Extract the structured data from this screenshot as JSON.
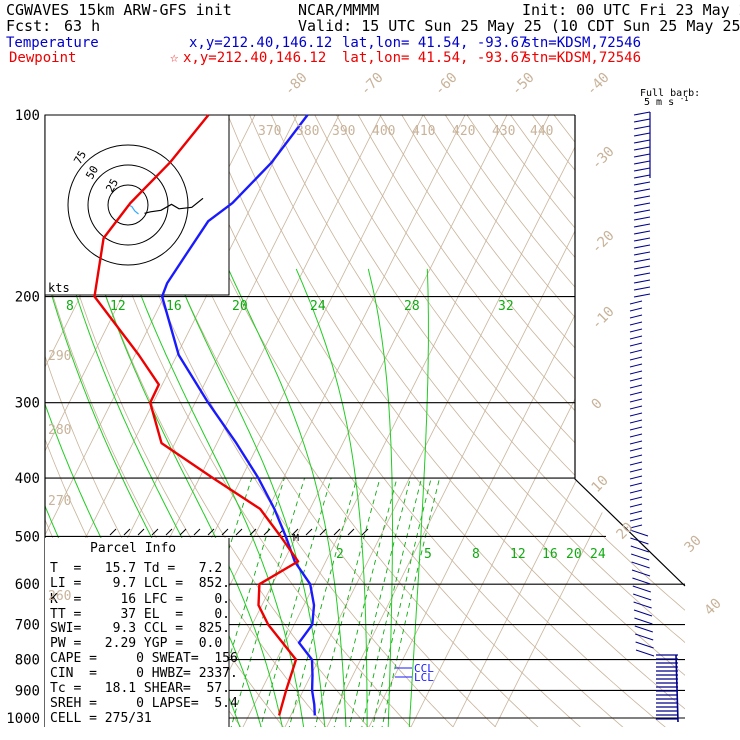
{
  "header": {
    "model": "CGWAVES 15km ARW-GFS init",
    "org": "NCAR/MMMM",
    "init": "Init: 00 UTC Fri 23 May 25",
    "fcst_label": "Fcst:",
    "fcst_value": "63 h",
    "valid": "Valid: 15 UTC Sun 25 May 25 (10 CDT Sun 25 May 25)",
    "temperature": {
      "label": "Temperature",
      "xy": "x,y=212.40,146.12",
      "latlon": "lat,lon= 41.54, -93.67",
      "stn": "stn=KDSM,72546"
    },
    "dewpoint": {
      "label": "Dewpoint",
      "star": "☆",
      "xy": "x,y=212.40,146.12",
      "latlon": "lat,lon= 41.54, -93.67",
      "stn": "stn=KDSM,72546"
    }
  },
  "barb_legend": {
    "line1": "Full barb:",
    "line2": "5 m s"
  },
  "hodograph": {
    "units": "kts",
    "ring_labels": [
      "75",
      "50",
      "25"
    ]
  },
  "parcel_info": {
    "title": "Parcel Info",
    "rows": [
      {
        "text": "T  =   15.7 Td =   7.2"
      },
      {
        "text": "LI =    9.7 LCL =  852."
      },
      {
        "text": "K  =     16 LFC =    0."
      },
      {
        "text": "TT =     37 EL  =    0."
      },
      {
        "text": "SWI=    9.3 CCL =  825."
      },
      {
        "text": "PW =   2.29 YGP =  0.0"
      },
      {
        "text": "CAPE =     0 SWEAT=  156"
      },
      {
        "text": "CIN  =     0 HWBZ= 2337."
      },
      {
        "text": "Tc =   18.1 SHEAR=  57."
      },
      {
        "text": "SREH =     0 LAPSE=  5.4"
      },
      {
        "text": "CELL = 275/31"
      }
    ]
  },
  "lcl_labels": [
    "CCL",
    "LCL"
  ],
  "colors": {
    "temperature": "#1a1aff",
    "dewpoint": "#ee0000",
    "isotherm": "#c8b39a",
    "mixing_ratio": "#11aa11",
    "moist_adiabat": "#22cc22",
    "hodo_trace": "#000000",
    "hodo_low": "#33aaff"
  },
  "chart_data": {
    "type": "line",
    "title": "",
    "pressure_levels": [
      100,
      200,
      300,
      400,
      500,
      600,
      700,
      800,
      900,
      1000
    ],
    "isotherm_labels": [
      -80,
      -70,
      -60,
      -50,
      -40,
      -30,
      -20,
      -10,
      0,
      10,
      20,
      30,
      40
    ],
    "theta_labels": [
      260,
      270,
      280,
      290,
      370,
      380,
      390,
      400,
      410,
      420,
      430,
      440
    ],
    "mixing_ratio_labels_upper": [
      8,
      12,
      16,
      20,
      24,
      28,
      32
    ],
    "mixing_ratio_labels_lower": [
      2,
      5,
      8,
      12,
      16,
      20,
      24
    ],
    "series": [
      {
        "name": "Temperature",
        "points": [
          {
            "p": 100,
            "t": -57.5
          },
          {
            "p": 120,
            "t": -60.4
          },
          {
            "p": 140,
            "t": -64.9
          },
          {
            "p": 150,
            "t": -68.5
          },
          {
            "p": 170,
            "t": -69.8
          },
          {
            "p": 190,
            "t": -70.9
          },
          {
            "p": 200,
            "t": -70.5
          },
          {
            "p": 250,
            "t": -59.6
          },
          {
            "p": 300,
            "t": -46.9
          },
          {
            "p": 350,
            "t": -35.4
          },
          {
            "p": 400,
            "t": -26.0
          },
          {
            "p": 450,
            "t": -18.5
          },
          {
            "p": 500,
            "t": -12.5
          },
          {
            "p": 550,
            "t": -7.4
          },
          {
            "p": 600,
            "t": -1.0
          },
          {
            "p": 650,
            "t": 2.4
          },
          {
            "p": 700,
            "t": 4.3
          },
          {
            "p": 750,
            "t": 3.3
          },
          {
            "p": 800,
            "t": 8.4
          },
          {
            "p": 850,
            "t": 10.4
          },
          {
            "p": 900,
            "t": 12.1
          },
          {
            "p": 950,
            "t": 14.3
          },
          {
            "p": 990,
            "t": 15.7
          }
        ]
      },
      {
        "name": "Dewpoint",
        "points": [
          {
            "p": 100,
            "t": -81.1
          },
          {
            "p": 120,
            "t": -84.6
          },
          {
            "p": 140,
            "t": -89.2
          },
          {
            "p": 160,
            "t": -91.4
          },
          {
            "p": 200,
            "t": -86.6
          },
          {
            "p": 250,
            "t": -69.1
          },
          {
            "p": 280,
            "t": -60.8
          },
          {
            "p": 300,
            "t": -60.7
          },
          {
            "p": 350,
            "t": -53.2
          },
          {
            "p": 400,
            "t": -36.8
          },
          {
            "p": 450,
            "t": -21.9
          },
          {
            "p": 500,
            "t": -13.7
          },
          {
            "p": 550,
            "t": -6.6
          },
          {
            "p": 600,
            "t": -13.1
          },
          {
            "p": 650,
            "t": -10.8
          },
          {
            "p": 700,
            "t": -6.2
          },
          {
            "p": 800,
            "t": 4.6
          },
          {
            "p": 900,
            "t": 5.9
          },
          {
            "p": 990,
            "t": 7.2
          }
        ]
      }
    ],
    "hodograph_trace": [
      {
        "u": 22,
        "v": -11
      },
      {
        "u": 30,
        "v": -9
      },
      {
        "u": 44,
        "v": -7
      },
      {
        "u": 58,
        "v": 1
      },
      {
        "u": 68,
        "v": -5
      },
      {
        "u": 85,
        "v": -3
      },
      {
        "u": 100,
        "v": 9
      }
    ],
    "hodograph_low_trace": [
      {
        "u": 0,
        "v": 0
      },
      {
        "u": 5,
        "v": -2
      },
      {
        "u": 9,
        "v": -8
      },
      {
        "u": 14,
        "v": -12
      }
    ]
  }
}
